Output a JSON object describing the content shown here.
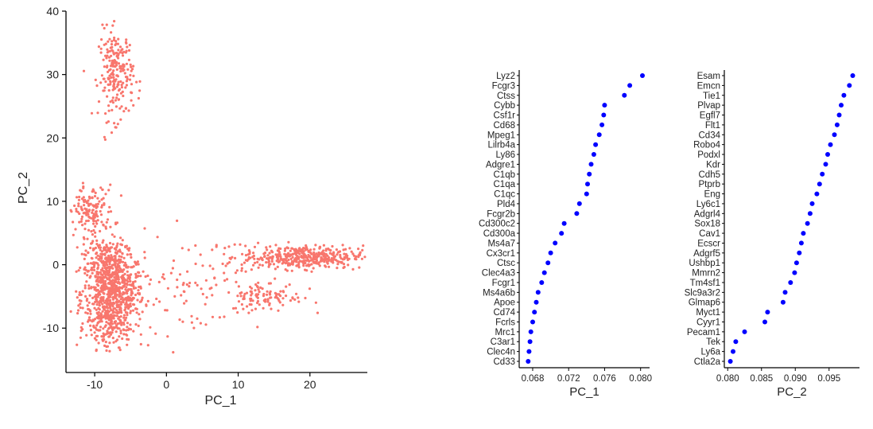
{
  "chart_data": [
    {
      "type": "scatter",
      "xlabel": "PC_1",
      "ylabel": "PC_2",
      "xlim": [
        -14,
        28
      ],
      "ylim": [
        -17,
        40
      ],
      "xticks": [
        -10,
        0,
        10,
        20
      ],
      "yticks": [
        -10,
        0,
        10,
        20,
        30,
        40
      ],
      "point_color": "#F8766D",
      "clusters": [
        {
          "cx": -7.5,
          "cy": -4.5,
          "sx": 2.2,
          "sy": 3.2,
          "n": 700
        },
        {
          "cx": -8.5,
          "cy": 1,
          "sx": 1.5,
          "sy": 1.6,
          "n": 160
        },
        {
          "cx": -10.5,
          "cy": 8.5,
          "sx": 1.6,
          "sy": 2.0,
          "n": 150
        },
        {
          "cx": -7,
          "cy": 30,
          "sx": 1.2,
          "sy": 3.5,
          "n": 220
        },
        {
          "cx": -8,
          "cy": -10,
          "sx": 1.5,
          "sy": 2.5,
          "n": 120
        },
        {
          "cx": 19,
          "cy": 1.2,
          "sx": 4.2,
          "sy": 0.9,
          "n": 420
        },
        {
          "cx": 14,
          "cy": -5,
          "sx": 2.5,
          "sy": 1.2,
          "n": 100
        },
        {
          "cx": 4,
          "cy": -3,
          "sx": 5,
          "sy": 4,
          "n": 90
        }
      ]
    },
    {
      "type": "dot",
      "xlabel": "PC_1",
      "xlim": [
        0.0665,
        0.081
      ],
      "xticks": [
        "0.068",
        "0.072",
        "0.076",
        "0.080"
      ],
      "xtick_values": [
        0.068,
        0.072,
        0.076,
        0.08
      ],
      "point_color": "#0000FF",
      "genes": [
        "Lyz2",
        "Fcgr3",
        "Ctss",
        "Cybb",
        "Csf1r",
        "Cd68",
        "Mpeg1",
        "Lilrb4a",
        "Ly86",
        "Adgre1",
        "C1qb",
        "C1qa",
        "C1qc",
        "Pld4",
        "Fcgr2b",
        "Cd300c2",
        "Cd300a",
        "Ms4a7",
        "Cx3cr1",
        "Ctsc",
        "Clec4a3",
        "Fcgr1",
        "Ms4a6b",
        "Apoe",
        "Cd74",
        "Fcrls",
        "Mrc1",
        "C3ar1",
        "Clec4n",
        "Cd33"
      ],
      "values": [
        0.0802,
        0.0788,
        0.0782,
        0.076,
        0.0759,
        0.0757,
        0.0754,
        0.075,
        0.0748,
        0.0745,
        0.0743,
        0.0741,
        0.074,
        0.0732,
        0.0729,
        0.0715,
        0.0712,
        0.0705,
        0.07,
        0.0697,
        0.0693,
        0.069,
        0.0686,
        0.0684,
        0.0682,
        0.068,
        0.0678,
        0.0677,
        0.0676,
        0.0675
      ]
    },
    {
      "type": "dot",
      "xlabel": "PC_2",
      "xlim": [
        0.0795,
        0.0995
      ],
      "xticks": [
        "0.080",
        "0.085",
        "0.090",
        "0.095"
      ],
      "xtick_values": [
        0.08,
        0.085,
        0.09,
        0.095
      ],
      "point_color": "#0000FF",
      "genes": [
        "Esam",
        "Emcn",
        "Tie1",
        "Plvap",
        "Egfl7",
        "Flt1",
        "Cd34",
        "Robo4",
        "Podxl",
        "Kdr",
        "Cdh5",
        "Ptprb",
        "Eng",
        "Ly6c1",
        "Adgrl4",
        "Sox18",
        "Cav1",
        "Ecscr",
        "Adgrf5",
        "Ushbp1",
        "Mmrn2",
        "Tm4sf1",
        "Slc9a3r2",
        "Glmap6",
        "Myct1",
        "Cyyr1",
        "Pecam1",
        "Tek",
        "Ly6a",
        "Ctla2a"
      ],
      "values": [
        0.0985,
        0.098,
        0.0972,
        0.0968,
        0.0965,
        0.0962,
        0.0958,
        0.0952,
        0.0948,
        0.0945,
        0.094,
        0.0936,
        0.0932,
        0.0925,
        0.0922,
        0.0918,
        0.0912,
        0.0909,
        0.0906,
        0.0902,
        0.0899,
        0.0893,
        0.0885,
        0.0882,
        0.0859,
        0.0855,
        0.0825,
        0.0812,
        0.0808,
        0.0804
      ]
    }
  ]
}
